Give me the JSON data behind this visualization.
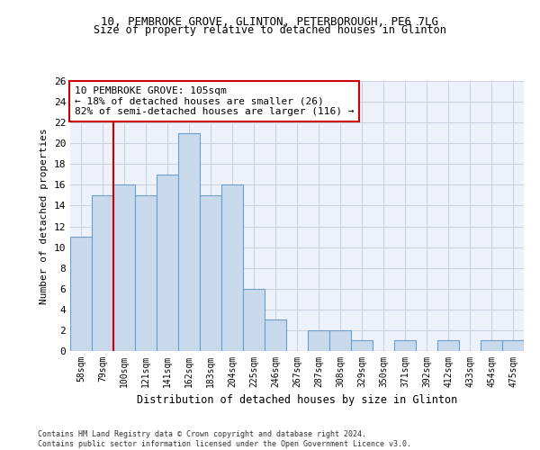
{
  "title": "10, PEMBROKE GROVE, GLINTON, PETERBOROUGH, PE6 7LG",
  "subtitle": "Size of property relative to detached houses in Glinton",
  "xlabel": "Distribution of detached houses by size in Glinton",
  "ylabel": "Number of detached properties",
  "categories": [
    "58sqm",
    "79sqm",
    "100sqm",
    "121sqm",
    "141sqm",
    "162sqm",
    "183sqm",
    "204sqm",
    "225sqm",
    "246sqm",
    "267sqm",
    "287sqm",
    "308sqm",
    "329sqm",
    "350sqm",
    "371sqm",
    "392sqm",
    "412sqm",
    "433sqm",
    "454sqm",
    "475sqm"
  ],
  "values": [
    11,
    15,
    16,
    15,
    17,
    21,
    15,
    16,
    6,
    3,
    0,
    2,
    2,
    1,
    0,
    1,
    0,
    1,
    0,
    1,
    1
  ],
  "bar_color": "#c9d9ec",
  "bar_edgecolor": "#6b9ec8",
  "vline_color": "#cc0000",
  "annotation_text": "10 PEMBROKE GROVE: 105sqm\n← 18% of detached houses are smaller (26)\n82% of semi-detached houses are larger (116) →",
  "annotation_box_color": "#ffffff",
  "annotation_box_edgecolor": "#cc0000",
  "ylim": [
    0,
    26
  ],
  "yticks": [
    0,
    2,
    4,
    6,
    8,
    10,
    12,
    14,
    16,
    18,
    20,
    22,
    24,
    26
  ],
  "background_color": "#edf1f9",
  "grid_color": "#c8cfe0",
  "footer_line1": "Contains HM Land Registry data © Crown copyright and database right 2024.",
  "footer_line2": "Contains public sector information licensed under the Open Government Licence v3.0."
}
